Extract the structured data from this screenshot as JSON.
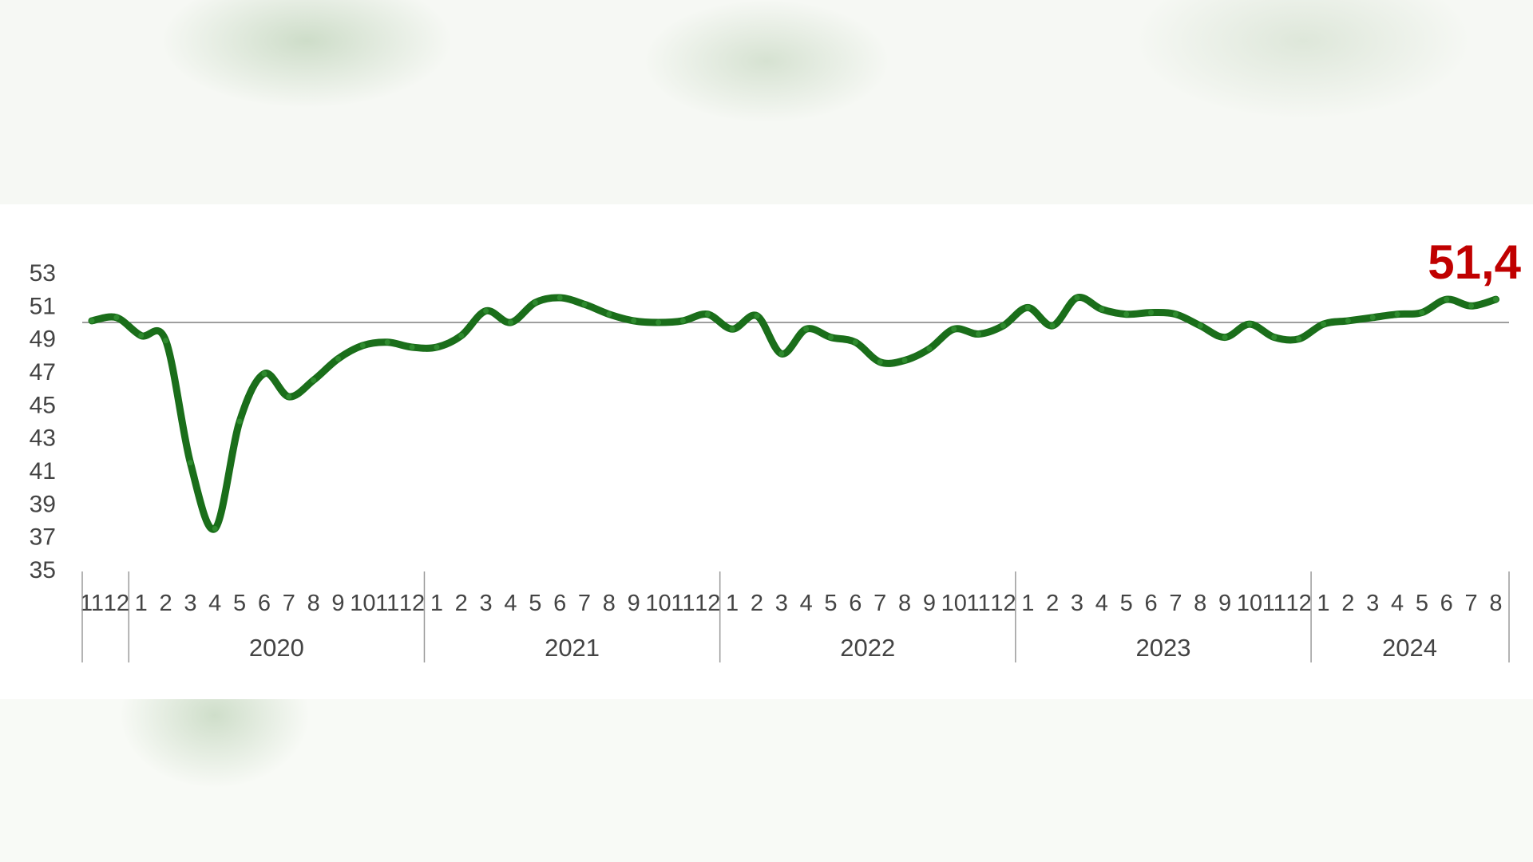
{
  "chart_data": {
    "type": "line",
    "title": "",
    "xlabel": "",
    "ylabel": "",
    "ylim": [
      35,
      53
    ],
    "y_ticks": [
      53,
      51,
      49,
      47,
      45,
      43,
      41,
      39,
      37,
      35
    ],
    "reference_line": 50,
    "grid": false,
    "line_color": "#1a6e1a",
    "callout_color": "#c00000",
    "callout": "51,4",
    "month_ticks": [
      "11",
      "12",
      "1",
      "2",
      "3",
      "4",
      "5",
      "6",
      "7",
      "8",
      "9",
      "10",
      "11",
      "12",
      "1",
      "2",
      "3",
      "4",
      "5",
      "6",
      "7",
      "8",
      "9",
      "10",
      "11",
      "12",
      "1",
      "2",
      "3",
      "4",
      "5",
      "6",
      "7",
      "8",
      "9",
      "10",
      "11",
      "12",
      "1",
      "2",
      "3",
      "4",
      "5",
      "6",
      "7",
      "8",
      "9",
      "10",
      "11",
      "12",
      "1",
      "2",
      "3",
      "4",
      "5",
      "6",
      "7",
      "8"
    ],
    "year_groups": [
      {
        "label": "",
        "months": 2
      },
      {
        "label": "2020",
        "months": 12
      },
      {
        "label": "2021",
        "months": 12
      },
      {
        "label": "2022",
        "months": 12
      },
      {
        "label": "2023",
        "months": 12
      },
      {
        "label": "2024",
        "months": 8
      }
    ],
    "series": [
      {
        "values": [
          50.1,
          50.3,
          49.2,
          48.9,
          41.5,
          37.5,
          44.0,
          46.9,
          45.5,
          46.5,
          47.8,
          48.6,
          48.8,
          48.5,
          48.5,
          49.2,
          50.7,
          50.0,
          51.2,
          51.5,
          51.1,
          50.5,
          50.1,
          50.0,
          50.1,
          50.5,
          49.6,
          50.4,
          48.1,
          49.6,
          49.1,
          48.8,
          47.6,
          47.7,
          48.4,
          49.6,
          49.3,
          49.8,
          50.9,
          49.8,
          51.5,
          50.8,
          50.5,
          50.6,
          50.5,
          49.8,
          49.1,
          49.9,
          49.1,
          49.0,
          49.9,
          50.1,
          50.3,
          50.5,
          50.6,
          51.4,
          51.0,
          51.4
        ]
      }
    ]
  }
}
